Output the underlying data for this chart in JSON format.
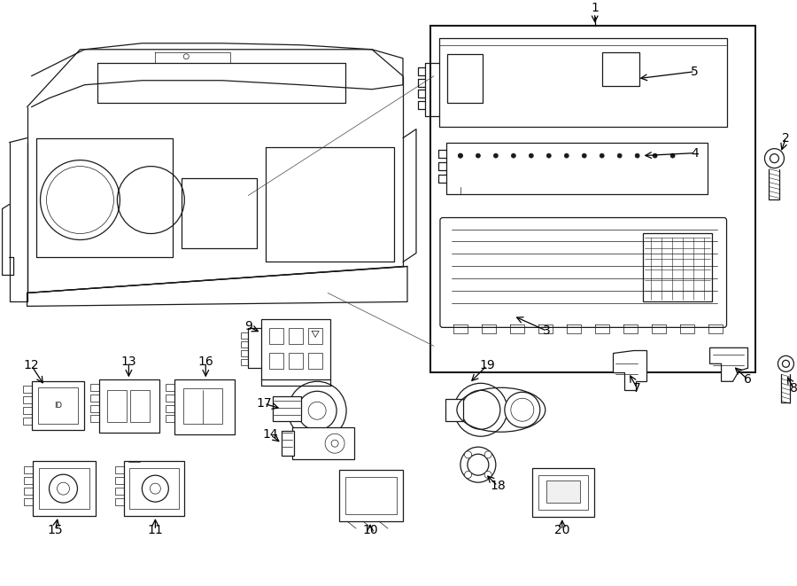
{
  "bg_color": "#ffffff",
  "line_color": "#1a1a1a",
  "fig_width": 9.0,
  "fig_height": 6.61,
  "dpi": 100,
  "lw_main": 0.9,
  "lw_thin": 0.5,
  "fontsize_label": 10
}
